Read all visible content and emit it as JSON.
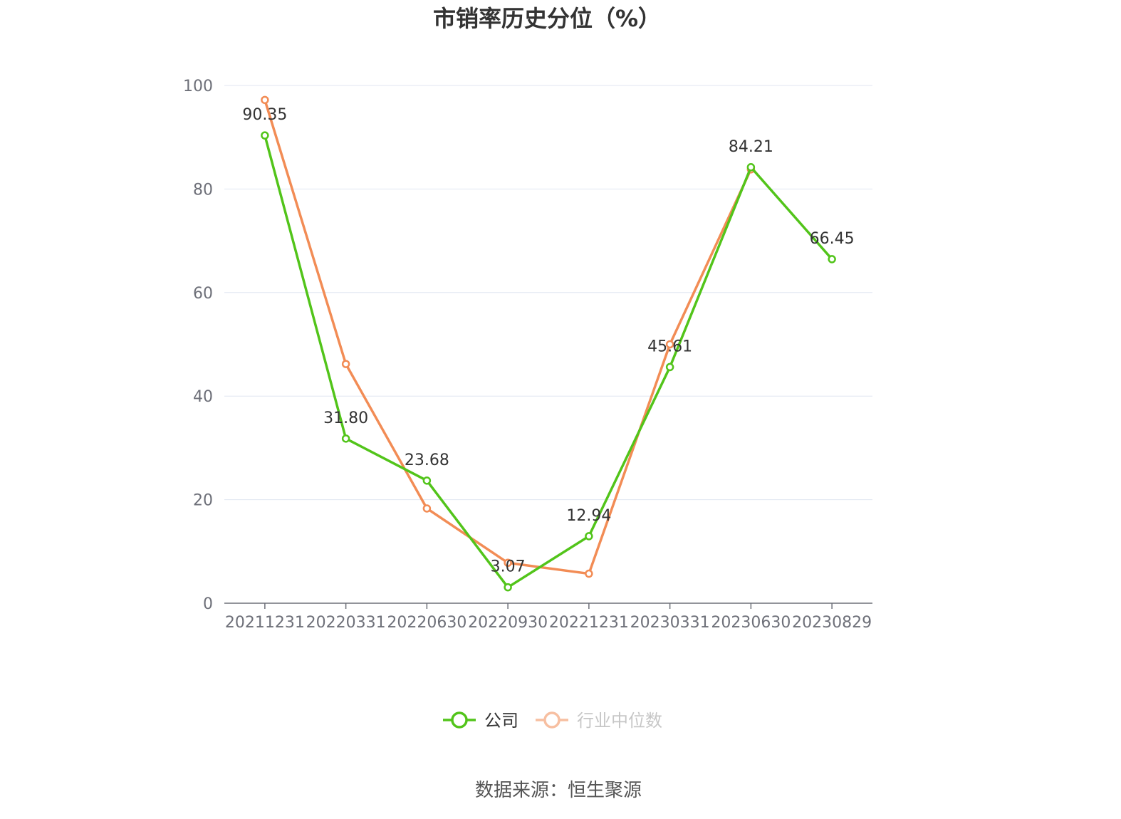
{
  "chart_data": {
    "type": "line",
    "title": "市销率历史分位（%）",
    "x": [
      "20211231",
      "20220331",
      "20220630",
      "20220930",
      "20221231",
      "20230331",
      "20230630",
      "20230829"
    ],
    "ylim": [
      0,
      100
    ],
    "yticks": [
      0,
      20,
      40,
      60,
      80,
      100
    ],
    "grid": true,
    "legend_position": "bottom",
    "series": [
      {
        "name": "公司",
        "color": "#52c41a",
        "values": [
          90.35,
          31.8,
          23.68,
          3.07,
          12.94,
          45.61,
          84.21,
          66.45
        ],
        "labels": [
          "90.35",
          "31.80",
          "23.68",
          "3.07",
          "12.94",
          "45.61",
          "84.21",
          "66.45"
        ]
      },
      {
        "name": "行业中位数",
        "color": "#f28c55",
        "values": [
          97.2,
          46.2,
          18.3,
          7.8,
          5.7,
          50.0,
          83.8,
          null
        ]
      }
    ],
    "source": "数据来源：恒生聚源"
  }
}
